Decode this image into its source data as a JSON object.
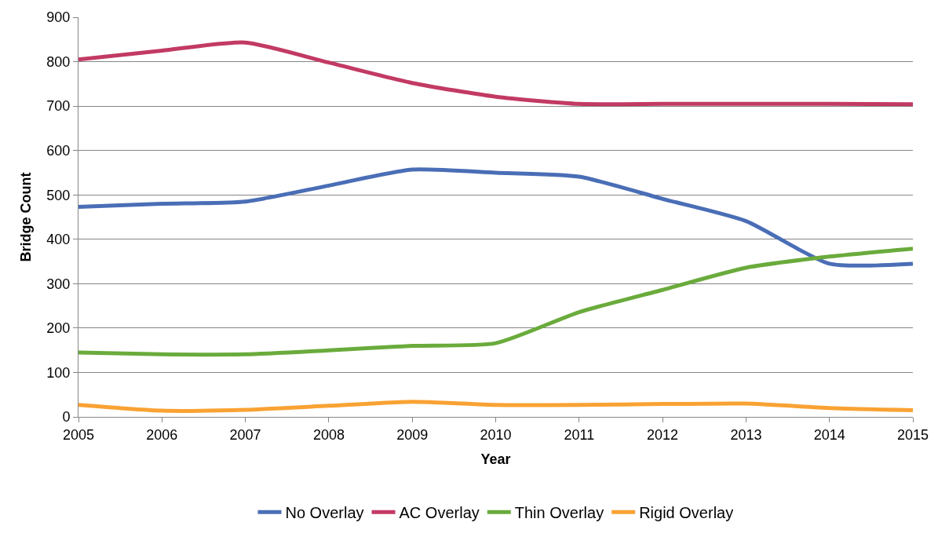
{
  "chart_data": {
    "type": "line",
    "xlabel": "Year",
    "ylabel": "Bridge Count",
    "x": [
      2005,
      2006,
      2007,
      2008,
      2009,
      2010,
      2011,
      2012,
      2013,
      2014,
      2015
    ],
    "series": [
      {
        "name": "No Overlay",
        "color": "#4a6eb6",
        "values": [
          473,
          480,
          485,
          521,
          557,
          550,
          541,
          491,
          441,
          345,
          345
        ]
      },
      {
        "name": "AC Overlay",
        "color": "#c23a64",
        "values": [
          805,
          825,
          843,
          798,
          752,
          721,
          705,
          705,
          705,
          705,
          704
        ]
      },
      {
        "name": "Thin Overlay",
        "color": "#6aab3c",
        "values": [
          145,
          141,
          141,
          150,
          160,
          166,
          236,
          286,
          336,
          361,
          379
        ]
      },
      {
        "name": "Rigid Overlay",
        "color": "#f9a233",
        "values": [
          27,
          14,
          16,
          25,
          34,
          27,
          27,
          29,
          30,
          20,
          15
        ]
      }
    ],
    "xlim": [
      2005,
      2015
    ],
    "xticks": [
      2005,
      2006,
      2007,
      2008,
      2009,
      2010,
      2011,
      2012,
      2013,
      2014,
      2015
    ],
    "ylim": [
      0,
      900
    ],
    "yticks": [
      0,
      100,
      200,
      300,
      400,
      500,
      600,
      700,
      800,
      900
    ],
    "grid": "y",
    "legend": "bottom",
    "marker": "none",
    "line_style": "solid"
  }
}
